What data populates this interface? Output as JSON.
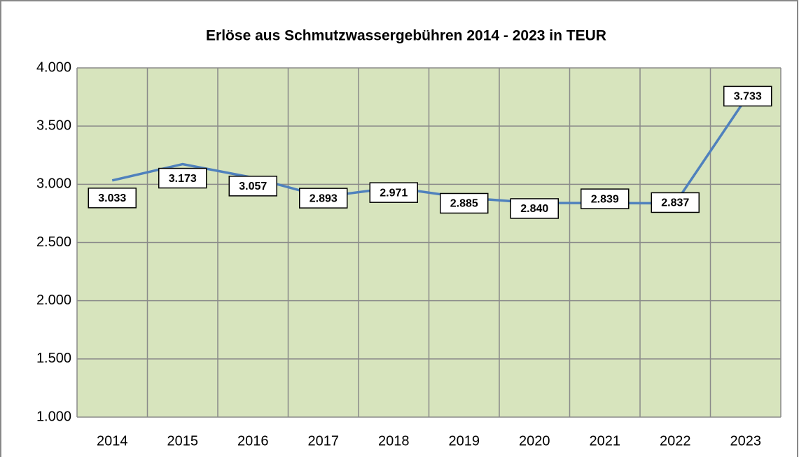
{
  "chart_data": {
    "type": "line",
    "title": "Erlöse aus Schmutzwassergebühren 2014 - 2023 in TEUR",
    "categories": [
      "2014",
      "2015",
      "2016",
      "2017",
      "2018",
      "2019",
      "2020",
      "2021",
      "2022",
      "2023"
    ],
    "series": [
      {
        "name": "Erlöse",
        "color": "#4f81bd",
        "values": [
          3033,
          3173,
          3057,
          2893,
          2971,
          2885,
          2840,
          2839,
          2837,
          3733
        ],
        "value_labels": [
          "3.033",
          "3.173",
          "3.057",
          "2.893",
          "2.971",
          "2.885",
          "2.840",
          "2.839",
          "2.837",
          "3.733"
        ]
      }
    ],
    "ylim": [
      1000,
      4000
    ],
    "yticks": [
      {
        "value": 1000,
        "label": "1.000"
      },
      {
        "value": 1500,
        "label": "1.500"
      },
      {
        "value": 2000,
        "label": "2.000"
      },
      {
        "value": 2500,
        "label": "2.500"
      },
      {
        "value": 3000,
        "label": "3.000"
      },
      {
        "value": 3500,
        "label": "3.500"
      },
      {
        "value": 4000,
        "label": "4.000"
      }
    ],
    "grid": true,
    "background": "#d7e4bd"
  }
}
